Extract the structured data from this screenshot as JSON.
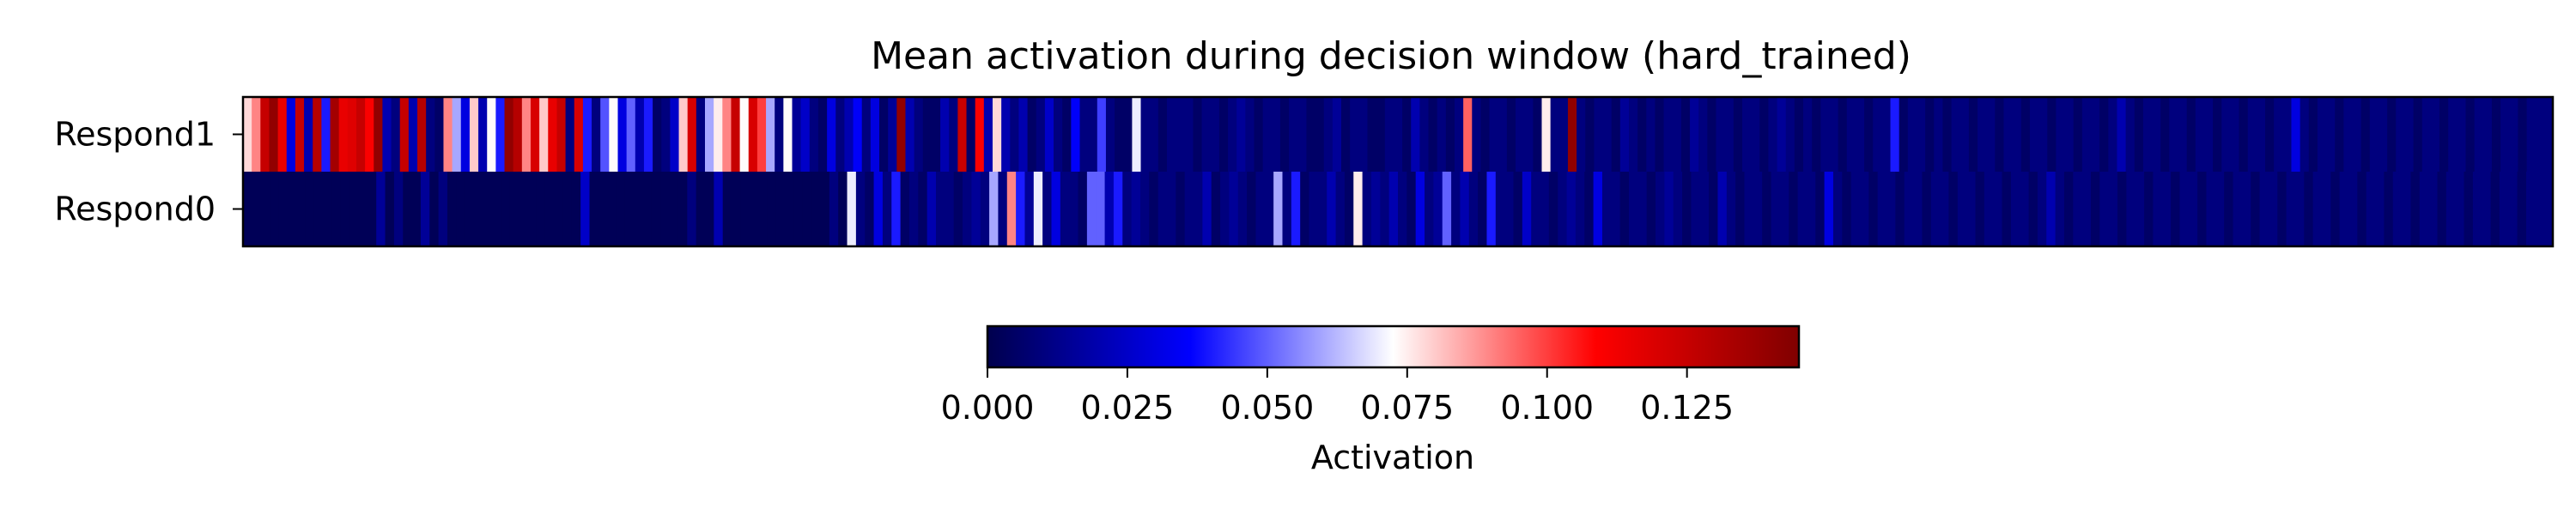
{
  "chart_data": {
    "type": "heatmap",
    "title": "Mean activation during decision window (hard_trained)",
    "rows": [
      "Respond1",
      "Respond0"
    ],
    "xlabel": "",
    "colormap": "seismic",
    "vmin": 0.0,
    "vmax": 0.145,
    "colorbar": {
      "label": "Activation",
      "ticks": [
        0.0,
        0.025,
        0.05,
        0.075,
        0.1,
        0.125
      ],
      "tick_labels": [
        "0.000",
        "0.025",
        "0.050",
        "0.075",
        "0.100",
        "0.125"
      ],
      "placement": "bottom"
    },
    "values": [
      [
        0.078,
        0.09,
        0.125,
        0.14,
        0.115,
        0.03,
        0.125,
        0.02,
        0.13,
        0.04,
        0.135,
        0.115,
        0.118,
        0.125,
        0.11,
        0.14,
        0.02,
        0.01,
        0.125,
        0.02,
        0.13,
        0.01,
        0.005,
        0.09,
        0.06,
        0.03,
        0.08,
        0.02,
        0.073,
        0.04,
        0.14,
        0.13,
        0.09,
        0.12,
        0.08,
        0.115,
        0.125,
        0.01,
        0.12,
        0.04,
        0.01,
        0.048,
        0.073,
        0.03,
        0.05,
        0.02,
        0.04,
        0.005,
        0.01,
        0.025,
        0.08,
        0.12,
        0.01,
        0.06,
        0.075,
        0.09,
        0.125,
        0.073,
        0.12,
        0.1,
        0.06,
        0.01,
        0.073,
        0.015,
        0.025,
        0.01,
        0.005,
        0.03,
        0.01,
        0.02,
        0.035,
        0.01,
        0.03,
        0.005,
        0.015,
        0.14,
        0.02,
        0.01,
        0.005,
        0.005,
        0.02,
        0.01,
        0.125,
        0.005,
        0.11,
        0.02,
        0.078,
        0.02,
        0.01,
        0.02,
        0.005,
        0.01,
        0.025,
        0.01,
        0.005,
        0.035,
        0.01,
        0.01,
        0.045,
        0.01,
        0.005,
        0.005,
        0.07,
        0.01,
        0.01,
        0.005,
        0.01,
        0.01,
        0.01,
        0.005,
        0.01,
        0.01,
        0.005,
        0.01,
        0.015,
        0.01,
        0.005,
        0.01,
        0.01,
        0.005,
        0.01,
        0.01,
        0.005,
        0.005,
        0.01,
        0.015,
        0.005,
        0.01,
        0.01,
        0.005,
        0.005,
        0.01,
        0.01,
        0.005,
        0.02,
        0.01,
        0.005,
        0.01,
        0.005,
        0.01,
        0.095,
        0.01,
        0.005,
        0.01,
        0.01,
        0.005,
        0.01,
        0.01,
        0.005,
        0.075,
        0.01,
        0.01,
        0.14,
        0.01,
        0.005,
        0.01,
        0.01,
        0.005,
        0.015,
        0.01,
        0.005,
        0.01,
        0.005,
        0.01,
        0.01,
        0.005,
        0.015,
        0.01,
        0.005,
        0.01,
        0.01,
        0.005,
        0.01,
        0.01,
        0.005,
        0.01,
        0.015,
        0.01,
        0.005,
        0.01,
        0.005,
        0.01,
        0.01,
        0.005,
        0.01,
        0.01,
        0.005,
        0.01,
        0.01,
        0.04,
        0.005,
        0.01,
        0.01,
        0.005,
        0.01,
        0.005,
        0.01,
        0.01,
        0.005,
        0.01,
        0.01,
        0.005,
        0.01,
        0.01,
        0.005,
        0.01,
        0.01,
        0.005,
        0.01,
        0.01,
        0.005,
        0.01,
        0.01,
        0.005,
        0.01,
        0.02,
        0.01,
        0.005,
        0.01,
        0.01,
        0.005,
        0.01,
        0.01,
        0.005,
        0.01,
        0.01,
        0.005,
        0.01,
        0.01,
        0.005,
        0.01,
        0.01,
        0.005,
        0.01,
        0.01,
        0.03,
        0.01,
        0.005,
        0.01,
        0.01,
        0.005,
        0.01,
        0.01,
        0.005,
        0.01,
        0.01,
        0.005,
        0.01,
        0.01,
        0.005,
        0.01,
        0.01,
        0.005,
        0.01,
        0.01,
        0.005,
        0.01,
        0.01,
        0.005,
        0.01,
        0.01,
        0.005,
        0.01,
        0.01,
        0.01
      ],
      [
        0.002,
        0.002,
        0.002,
        0.002,
        0.002,
        0.002,
        0.002,
        0.002,
        0.002,
        0.002,
        0.002,
        0.002,
        0.002,
        0.002,
        0.002,
        0.015,
        0.002,
        0.01,
        0.002,
        0.002,
        0.015,
        0.002,
        0.01,
        0.002,
        0.002,
        0.002,
        0.002,
        0.002,
        0.002,
        0.002,
        0.002,
        0.002,
        0.002,
        0.002,
        0.002,
        0.002,
        0.002,
        0.002,
        0.025,
        0.002,
        0.002,
        0.002,
        0.002,
        0.002,
        0.002,
        0.002,
        0.002,
        0.002,
        0.002,
        0.002,
        0.01,
        0.002,
        0.002,
        0.02,
        0.002,
        0.002,
        0.002,
        0.002,
        0.002,
        0.002,
        0.002,
        0.002,
        0.002,
        0.002,
        0.002,
        0.002,
        0.01,
        0.002,
        0.07,
        0.01,
        0.005,
        0.03,
        0.01,
        0.04,
        0.005,
        0.01,
        0.005,
        0.02,
        0.01,
        0.01,
        0.005,
        0.01,
        0.015,
        0.01,
        0.06,
        0.01,
        0.09,
        0.04,
        0.015,
        0.07,
        0.01,
        0.03,
        0.01,
        0.01,
        0.005,
        0.05,
        0.05,
        0.02,
        0.04,
        0.01,
        0.015,
        0.01,
        0.005,
        0.01,
        0.01,
        0.005,
        0.01,
        0.01,
        0.02,
        0.005,
        0.01,
        0.015,
        0.01,
        0.005,
        0.01,
        0.01,
        0.06,
        0.01,
        0.04,
        0.005,
        0.01,
        0.01,
        0.02,
        0.01,
        0.005,
        0.075,
        0.01,
        0.015,
        0.01,
        0.02,
        0.01,
        0.005,
        0.03,
        0.01,
        0.015,
        0.05,
        0.01,
        0.02,
        0.01,
        0.005,
        0.04,
        0.01,
        0.01,
        0.005,
        0.025,
        0.01,
        0.01,
        0.005,
        0.01,
        0.015,
        0.01,
        0.005,
        0.03,
        0.01,
        0.01,
        0.005,
        0.01,
        0.01,
        0.005,
        0.01,
        0.015,
        0.01,
        0.005,
        0.01,
        0.01,
        0.005,
        0.02,
        0.01,
        0.005,
        0.01,
        0.01,
        0.005,
        0.01,
        0.01,
        0.005,
        0.01,
        0.01,
        0.005,
        0.03,
        0.01,
        0.005,
        0.01,
        0.01,
        0.005,
        0.01,
        0.01,
        0.005,
        0.01,
        0.01,
        0.005,
        0.01,
        0.01,
        0.005,
        0.01,
        0.01,
        0.005,
        0.01,
        0.01,
        0.005,
        0.01,
        0.01,
        0.005,
        0.01,
        0.02,
        0.01,
        0.005,
        0.01,
        0.01,
        0.005,
        0.01,
        0.01,
        0.005,
        0.01,
        0.01,
        0.005,
        0.01,
        0.01,
        0.005,
        0.01,
        0.01,
        0.005,
        0.01,
        0.01,
        0.005,
        0.01,
        0.01,
        0.005,
        0.01,
        0.01,
        0.005,
        0.01,
        0.01,
        0.005,
        0.01,
        0.01,
        0.005,
        0.01,
        0.01,
        0.005,
        0.01,
        0.01,
        0.005,
        0.01,
        0.01,
        0.005,
        0.01,
        0.01,
        0.005,
        0.01,
        0.01,
        0.005,
        0.01,
        0.01,
        0.005,
        0.01,
        0.01,
        0.005,
        0.01,
        0.01,
        0.01
      ]
    ]
  }
}
